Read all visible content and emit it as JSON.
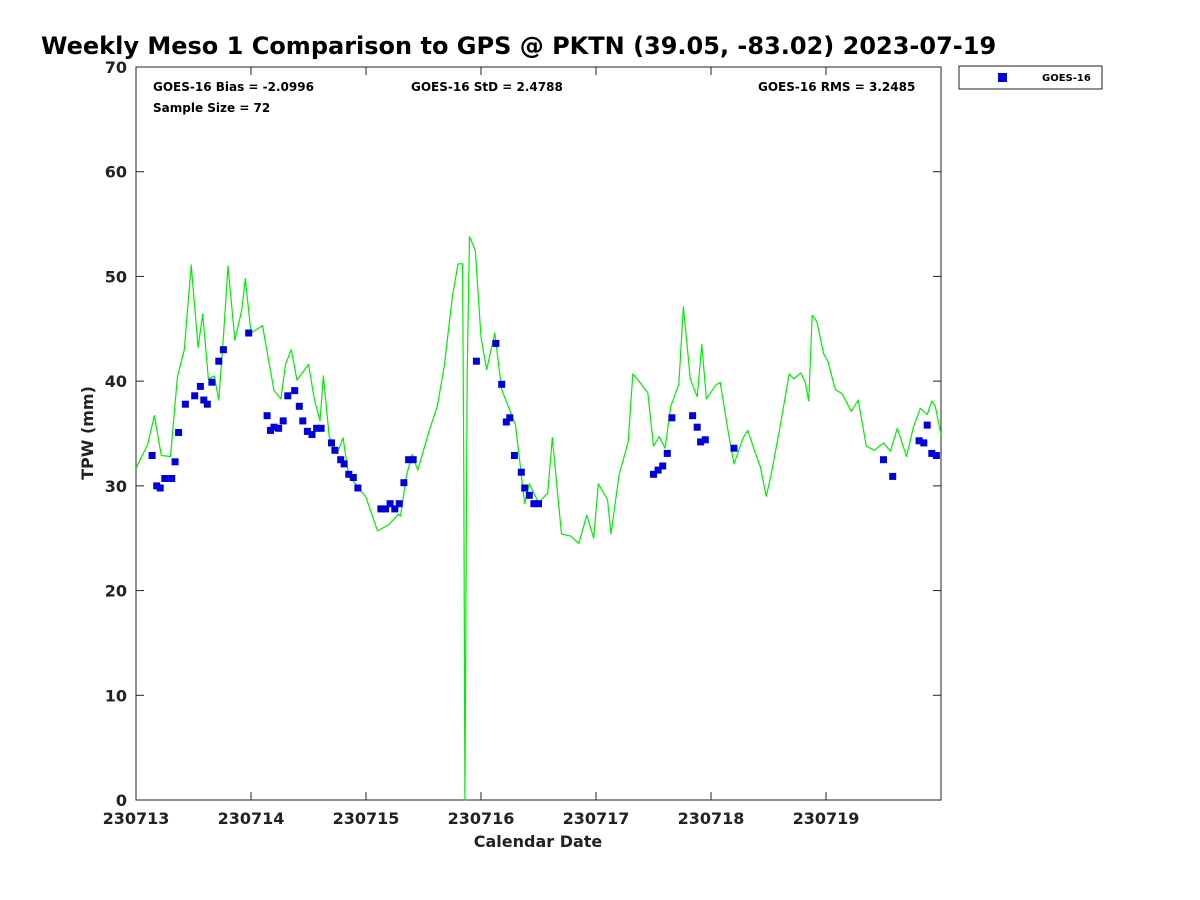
{
  "chart_data": {
    "type": "scatter",
    "title": "Weekly Meso 1 Comparison to GPS @ PKTN (39.05, -83.02) 2023-07-19",
    "xlabel": "Calendar Date",
    "ylabel": "TPW (mm)",
    "xlim": [
      0,
      7
    ],
    "ylim": [
      0,
      70
    ],
    "x_ticks": [
      {
        "value": 0,
        "label": "230713"
      },
      {
        "value": 1,
        "label": "230714"
      },
      {
        "value": 2,
        "label": "230715"
      },
      {
        "value": 3,
        "label": "230716"
      },
      {
        "value": 4,
        "label": "230717"
      },
      {
        "value": 5,
        "label": "230718"
      },
      {
        "value": 6,
        "label": "230719"
      }
    ],
    "y_ticks": [
      0,
      10,
      20,
      30,
      40,
      50,
      60,
      70
    ],
    "stats": {
      "bias": "GOES-16 Bias = -2.0996",
      "std": "GOES-16 StD = 2.4788",
      "rms": "GOES-16 RMS = 3.2485",
      "sample_size": "Sample Size = 72"
    },
    "legend": {
      "placement": "outside-top-right",
      "entries": [
        "GOES-16"
      ]
    },
    "series": [
      {
        "name": "GOES-16",
        "kind": "scatter",
        "color": "#0000dd",
        "points": [
          [
            0.14,
            32.9
          ],
          [
            0.18,
            30.0
          ],
          [
            0.21,
            29.8
          ],
          [
            0.25,
            30.7
          ],
          [
            0.31,
            30.7
          ],
          [
            0.34,
            32.3
          ],
          [
            0.37,
            35.1
          ],
          [
            0.43,
            37.8
          ],
          [
            0.51,
            38.6
          ],
          [
            0.56,
            39.5
          ],
          [
            0.59,
            38.2
          ],
          [
            0.62,
            37.8
          ],
          [
            0.66,
            39.9
          ],
          [
            0.72,
            41.9
          ],
          [
            0.76,
            43.0
          ],
          [
            0.98,
            44.6
          ],
          [
            1.14,
            36.7
          ],
          [
            1.17,
            35.3
          ],
          [
            1.2,
            35.6
          ],
          [
            1.24,
            35.5
          ],
          [
            1.28,
            36.2
          ],
          [
            1.32,
            38.6
          ],
          [
            1.38,
            39.1
          ],
          [
            1.42,
            37.6
          ],
          [
            1.45,
            36.2
          ],
          [
            1.49,
            35.2
          ],
          [
            1.53,
            34.9
          ],
          [
            1.57,
            35.5
          ],
          [
            1.61,
            35.5
          ],
          [
            1.7,
            34.1
          ],
          [
            1.73,
            33.4
          ],
          [
            1.78,
            32.5
          ],
          [
            1.81,
            32.1
          ],
          [
            1.85,
            31.1
          ],
          [
            1.89,
            30.8
          ],
          [
            1.93,
            29.8
          ],
          [
            2.13,
            27.8
          ],
          [
            2.17,
            27.8
          ],
          [
            2.21,
            28.3
          ],
          [
            2.25,
            27.8
          ],
          [
            2.29,
            28.3
          ],
          [
            2.33,
            30.3
          ],
          [
            2.37,
            32.5
          ],
          [
            2.41,
            32.5
          ],
          [
            2.96,
            41.9
          ],
          [
            3.13,
            43.6
          ],
          [
            3.18,
            39.7
          ],
          [
            3.22,
            36.1
          ],
          [
            3.25,
            36.5
          ],
          [
            3.29,
            32.9
          ],
          [
            3.35,
            31.3
          ],
          [
            3.38,
            29.8
          ],
          [
            3.42,
            29.1
          ],
          [
            3.46,
            28.3
          ],
          [
            3.5,
            28.3
          ],
          [
            4.5,
            31.1
          ],
          [
            4.54,
            31.5
          ],
          [
            4.58,
            31.9
          ],
          [
            4.62,
            33.1
          ],
          [
            4.66,
            36.5
          ],
          [
            4.84,
            36.7
          ],
          [
            4.88,
            35.6
          ],
          [
            4.91,
            34.2
          ],
          [
            4.95,
            34.4
          ],
          [
            5.2,
            33.6
          ],
          [
            6.5,
            32.5
          ],
          [
            6.58,
            30.9
          ],
          [
            6.81,
            34.3
          ],
          [
            6.85,
            34.1
          ],
          [
            6.88,
            35.8
          ],
          [
            6.92,
            33.1
          ],
          [
            6.96,
            32.9
          ]
        ]
      },
      {
        "name": "",
        "kind": "line",
        "color": "#00ee00",
        "points": [
          [
            0.0,
            31.7
          ],
          [
            0.1,
            33.9
          ],
          [
            0.16,
            36.7
          ],
          [
            0.22,
            32.9
          ],
          [
            0.3,
            32.8
          ],
          [
            0.36,
            40.4
          ],
          [
            0.42,
            43.0
          ],
          [
            0.48,
            51.1
          ],
          [
            0.54,
            43.2
          ],
          [
            0.58,
            46.4
          ],
          [
            0.63,
            40.2
          ],
          [
            0.68,
            40.5
          ],
          [
            0.72,
            38.2
          ],
          [
            0.76,
            44.2
          ],
          [
            0.8,
            51.0
          ],
          [
            0.86,
            43.9
          ],
          [
            0.92,
            46.8
          ],
          [
            0.95,
            49.8
          ],
          [
            1.0,
            44.6
          ],
          [
            1.1,
            45.3
          ],
          [
            1.2,
            39.1
          ],
          [
            1.26,
            38.3
          ],
          [
            1.3,
            41.6
          ],
          [
            1.35,
            43.0
          ],
          [
            1.4,
            40.1
          ],
          [
            1.5,
            41.6
          ],
          [
            1.55,
            38.3
          ],
          [
            1.6,
            36.2
          ],
          [
            1.63,
            40.5
          ],
          [
            1.68,
            34.7
          ],
          [
            1.75,
            33.1
          ],
          [
            1.8,
            34.6
          ],
          [
            1.85,
            30.9
          ],
          [
            1.9,
            30.3
          ],
          [
            2.0,
            28.9
          ],
          [
            2.1,
            25.7
          ],
          [
            2.2,
            26.3
          ],
          [
            2.28,
            27.3
          ],
          [
            2.3,
            27.1
          ],
          [
            2.35,
            30.9
          ],
          [
            2.4,
            33.0
          ],
          [
            2.45,
            31.5
          ],
          [
            2.55,
            35.3
          ],
          [
            2.62,
            37.6
          ],
          [
            2.68,
            41.4
          ],
          [
            2.75,
            48.0
          ],
          [
            2.8,
            51.2
          ],
          [
            2.84,
            51.2
          ],
          [
            2.85,
            31.2
          ],
          [
            2.86,
            0.0
          ],
          [
            2.88,
            40.7
          ],
          [
            2.9,
            53.8
          ],
          [
            2.95,
            52.5
          ],
          [
            3.0,
            44.2
          ],
          [
            3.05,
            41.1
          ],
          [
            3.12,
            44.6
          ],
          [
            3.18,
            39.2
          ],
          [
            3.25,
            37.2
          ],
          [
            3.3,
            35.8
          ],
          [
            3.38,
            28.3
          ],
          [
            3.42,
            30.2
          ],
          [
            3.5,
            28.4
          ],
          [
            3.58,
            29.3
          ],
          [
            3.62,
            34.6
          ],
          [
            3.7,
            25.4
          ],
          [
            3.78,
            25.2
          ],
          [
            3.85,
            24.5
          ],
          [
            3.92,
            27.2
          ],
          [
            3.98,
            25.0
          ],
          [
            4.02,
            30.2
          ],
          [
            4.1,
            28.7
          ],
          [
            4.13,
            25.4
          ],
          [
            4.2,
            31.0
          ],
          [
            4.28,
            34.2
          ],
          [
            4.32,
            40.7
          ],
          [
            4.38,
            39.9
          ],
          [
            4.45,
            38.9
          ],
          [
            4.5,
            33.8
          ],
          [
            4.55,
            34.7
          ],
          [
            4.6,
            33.6
          ],
          [
            4.65,
            37.6
          ],
          [
            4.72,
            39.7
          ],
          [
            4.76,
            47.1
          ],
          [
            4.82,
            40.2
          ],
          [
            4.88,
            38.5
          ],
          [
            4.92,
            43.5
          ],
          [
            4.96,
            38.3
          ],
          [
            5.04,
            39.6
          ],
          [
            5.08,
            39.9
          ],
          [
            5.15,
            35.1
          ],
          [
            5.2,
            32.1
          ],
          [
            5.28,
            34.6
          ],
          [
            5.32,
            35.3
          ],
          [
            5.38,
            33.3
          ],
          [
            5.43,
            31.8
          ],
          [
            5.48,
            29.0
          ],
          [
            5.52,
            30.9
          ],
          [
            5.6,
            35.6
          ],
          [
            5.68,
            40.7
          ],
          [
            5.72,
            40.2
          ],
          [
            5.78,
            40.8
          ],
          [
            5.82,
            39.9
          ],
          [
            5.85,
            38.1
          ],
          [
            5.88,
            46.3
          ],
          [
            5.92,
            45.7
          ],
          [
            5.98,
            42.6
          ],
          [
            6.02,
            41.8
          ],
          [
            6.08,
            39.2
          ],
          [
            6.14,
            38.8
          ],
          [
            6.22,
            37.1
          ],
          [
            6.28,
            38.2
          ],
          [
            6.35,
            33.8
          ],
          [
            6.42,
            33.4
          ],
          [
            6.5,
            34.1
          ],
          [
            6.56,
            33.3
          ],
          [
            6.62,
            35.5
          ],
          [
            6.7,
            32.8
          ],
          [
            6.76,
            35.6
          ],
          [
            6.82,
            37.4
          ],
          [
            6.88,
            36.8
          ],
          [
            6.92,
            38.1
          ],
          [
            6.95,
            37.6
          ],
          [
            7.0,
            34.9
          ]
        ]
      }
    ]
  }
}
